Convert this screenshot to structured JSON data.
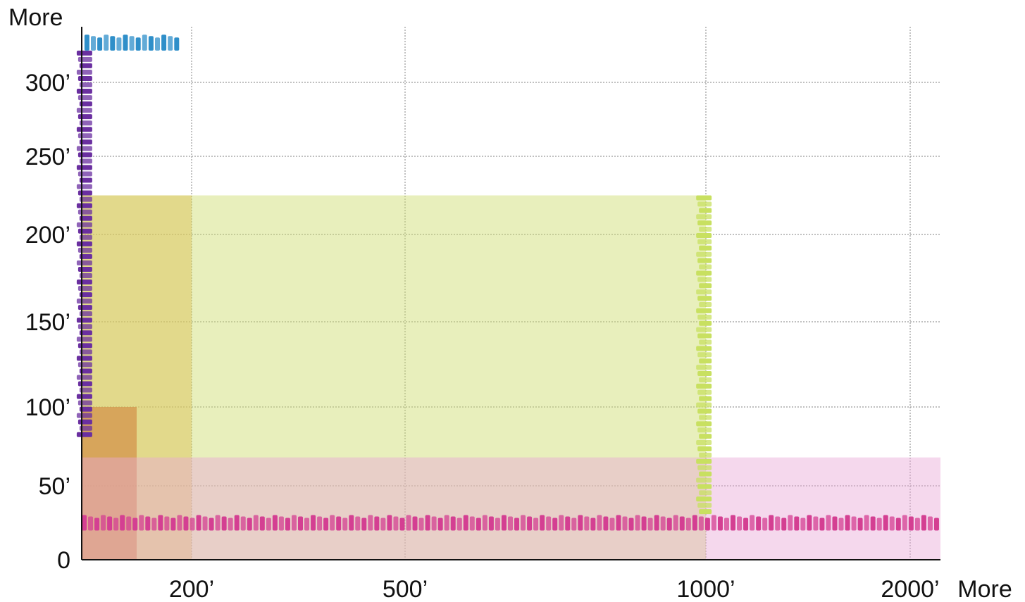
{
  "chart_data": {
    "type": "area",
    "title": "",
    "x_axis": {
      "ticks": [
        {
          "value": 200,
          "label": "200’"
        },
        {
          "value": 500,
          "label": "500’"
        },
        {
          "value": 1000,
          "label": "1000’"
        },
        {
          "value": 2000,
          "label": "2000’"
        }
      ],
      "end_label": "More",
      "range": [
        0,
        2050
      ],
      "scale": "nonlinear"
    },
    "y_axis": {
      "ticks": [
        {
          "value": 0,
          "label": "0"
        },
        {
          "value": 50,
          "label": "50’"
        },
        {
          "value": 100,
          "label": "100’"
        },
        {
          "value": 150,
          "label": "150’"
        },
        {
          "value": 200,
          "label": "200’"
        },
        {
          "value": 250,
          "label": "250’"
        },
        {
          "value": 300,
          "label": "300’"
        }
      ],
      "end_label": "More",
      "range": [
        0,
        335
      ],
      "scale": "nonlinear"
    },
    "grid": true,
    "legend": "none",
    "series": [
      {
        "color": "#6a2fa0",
        "x": [
          0,
          10
        ],
        "y": [
          80,
          320
        ]
      },
      {
        "color": "#2f8fc9",
        "x": [
          5,
          180
        ],
        "y": [
          320,
          330
        ]
      },
      {
        "color": "#e8a83a",
        "x": [
          0,
          200
        ],
        "y": [
          0,
          225
        ]
      },
      {
        "color": "#e07a2a",
        "x": [
          0,
          100
        ],
        "y": [
          0,
          100
        ]
      },
      {
        "color": "#d23a2a",
        "x": [
          0,
          100
        ],
        "y": [
          0,
          100
        ]
      },
      {
        "color": "#cddc6a",
        "x": [
          0,
          1000
        ],
        "y": [
          0,
          225
        ]
      },
      {
        "color": "#c8e060",
        "x": [
          990,
          1010
        ],
        "y": [
          30,
          225
        ]
      },
      {
        "color": "#e8a8d8",
        "x": [
          0,
          2050
        ],
        "y": [
          0,
          68
        ]
      },
      {
        "color": "#d43f92",
        "x": [
          0,
          2050
        ],
        "y": [
          20,
          30
        ]
      }
    ]
  }
}
